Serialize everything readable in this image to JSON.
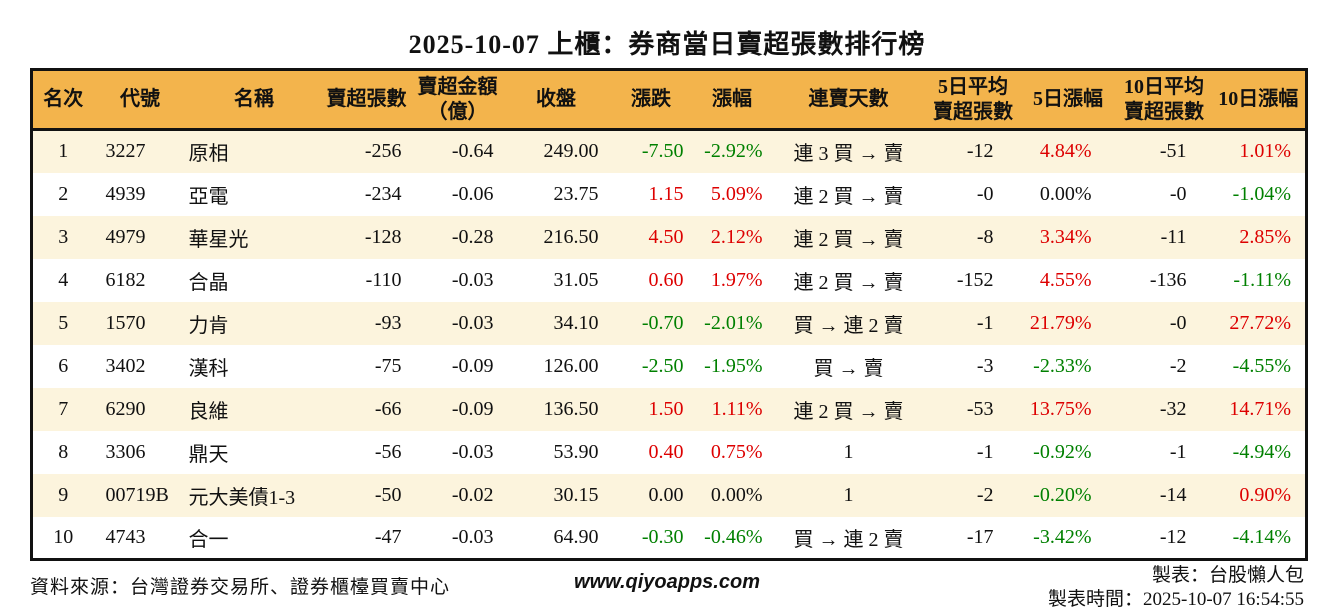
{
  "title": "2025-10-07 上櫃：券商當日賣超張數排行榜",
  "colors": {
    "header_bg": "#F3B44C",
    "row_alt_bg": "#FCF4DD",
    "up": "#DD0000",
    "down": "#008000",
    "text": "#111111",
    "border": "#111111"
  },
  "table": {
    "headers": [
      "名次",
      "代號",
      "名稱",
      "賣超張數",
      "賣超金額\n（億）",
      "收盤",
      "漲跌",
      "漲幅",
      "連賣天數",
      "5日平均\n賣超張數",
      "5日漲幅",
      "10日平均\n賣超張數",
      "10日漲幅"
    ],
    "rows": [
      {
        "rank": "1",
        "code": "3227",
        "name": "原相",
        "sell_vol": "-256",
        "sell_amt": "-0.64",
        "close": "249.00",
        "change": "-7.50",
        "change_color": "down",
        "change_pct": "-2.92%",
        "change_pct_color": "down",
        "streak": "連 3 買 → 賣",
        "avg5": "-12",
        "pct5": "4.84%",
        "pct5_color": "up",
        "avg10": "-51",
        "pct10": "1.01%",
        "pct10_color": "up"
      },
      {
        "rank": "2",
        "code": "4939",
        "name": "亞電",
        "sell_vol": "-234",
        "sell_amt": "-0.06",
        "close": "23.75",
        "change": "1.15",
        "change_color": "up",
        "change_pct": "5.09%",
        "change_pct_color": "up",
        "streak": "連 2 買 → 賣",
        "avg5": "-0",
        "pct5": "0.00%",
        "pct5_color": "flat",
        "avg10": "-0",
        "pct10": "-1.04%",
        "pct10_color": "down"
      },
      {
        "rank": "3",
        "code": "4979",
        "name": "華星光",
        "sell_vol": "-128",
        "sell_amt": "-0.28",
        "close": "216.50",
        "change": "4.50",
        "change_color": "up",
        "change_pct": "2.12%",
        "change_pct_color": "up",
        "streak": "連 2 買 → 賣",
        "avg5": "-8",
        "pct5": "3.34%",
        "pct5_color": "up",
        "avg10": "-11",
        "pct10": "2.85%",
        "pct10_color": "up"
      },
      {
        "rank": "4",
        "code": "6182",
        "name": "合晶",
        "sell_vol": "-110",
        "sell_amt": "-0.03",
        "close": "31.05",
        "change": "0.60",
        "change_color": "up",
        "change_pct": "1.97%",
        "change_pct_color": "up",
        "streak": "連 2 買 → 賣",
        "avg5": "-152",
        "pct5": "4.55%",
        "pct5_color": "up",
        "avg10": "-136",
        "pct10": "-1.11%",
        "pct10_color": "down"
      },
      {
        "rank": "5",
        "code": "1570",
        "name": "力肯",
        "sell_vol": "-93",
        "sell_amt": "-0.03",
        "close": "34.10",
        "change": "-0.70",
        "change_color": "down",
        "change_pct": "-2.01%",
        "change_pct_color": "down",
        "streak": "買 → 連 2 賣",
        "avg5": "-1",
        "pct5": "21.79%",
        "pct5_color": "up",
        "avg10": "-0",
        "pct10": "27.72%",
        "pct10_color": "up"
      },
      {
        "rank": "6",
        "code": "3402",
        "name": "漢科",
        "sell_vol": "-75",
        "sell_amt": "-0.09",
        "close": "126.00",
        "change": "-2.50",
        "change_color": "down",
        "change_pct": "-1.95%",
        "change_pct_color": "down",
        "streak": "買 → 賣",
        "avg5": "-3",
        "pct5": "-2.33%",
        "pct5_color": "down",
        "avg10": "-2",
        "pct10": "-4.55%",
        "pct10_color": "down"
      },
      {
        "rank": "7",
        "code": "6290",
        "name": "良維",
        "sell_vol": "-66",
        "sell_amt": "-0.09",
        "close": "136.50",
        "change": "1.50",
        "change_color": "up",
        "change_pct": "1.11%",
        "change_pct_color": "up",
        "streak": "連 2 買 → 賣",
        "avg5": "-53",
        "pct5": "13.75%",
        "pct5_color": "up",
        "avg10": "-32",
        "pct10": "14.71%",
        "pct10_color": "up"
      },
      {
        "rank": "8",
        "code": "3306",
        "name": "鼎天",
        "sell_vol": "-56",
        "sell_amt": "-0.03",
        "close": "53.90",
        "change": "0.40",
        "change_color": "up",
        "change_pct": "0.75%",
        "change_pct_color": "up",
        "streak": "1",
        "avg5": "-1",
        "pct5": "-0.92%",
        "pct5_color": "down",
        "avg10": "-1",
        "pct10": "-4.94%",
        "pct10_color": "down"
      },
      {
        "rank": "9",
        "code": "00719B",
        "name": "元大美債1-3",
        "sell_vol": "-50",
        "sell_amt": "-0.02",
        "close": "30.15",
        "change": "0.00",
        "change_color": "flat",
        "change_pct": "0.00%",
        "change_pct_color": "flat",
        "streak": "1",
        "avg5": "-2",
        "pct5": "-0.20%",
        "pct5_color": "down",
        "avg10": "-14",
        "pct10": "0.90%",
        "pct10_color": "up"
      },
      {
        "rank": "10",
        "code": "4743",
        "name": "合一",
        "sell_vol": "-47",
        "sell_amt": "-0.03",
        "close": "64.90",
        "change": "-0.30",
        "change_color": "down",
        "change_pct": "-0.46%",
        "change_pct_color": "down",
        "streak": "買 → 連 2 賣",
        "avg5": "-17",
        "pct5": "-3.42%",
        "pct5_color": "down",
        "avg10": "-12",
        "pct10": "-4.14%",
        "pct10_color": "down"
      }
    ]
  },
  "footer": {
    "source": "資料來源：台灣證券交易所、證券櫃檯買賣中心",
    "site": "www.qiyoapps.com",
    "maker": "製表：台股懶人包",
    "generated": "製表時間：2025-10-07 16:54:55"
  }
}
